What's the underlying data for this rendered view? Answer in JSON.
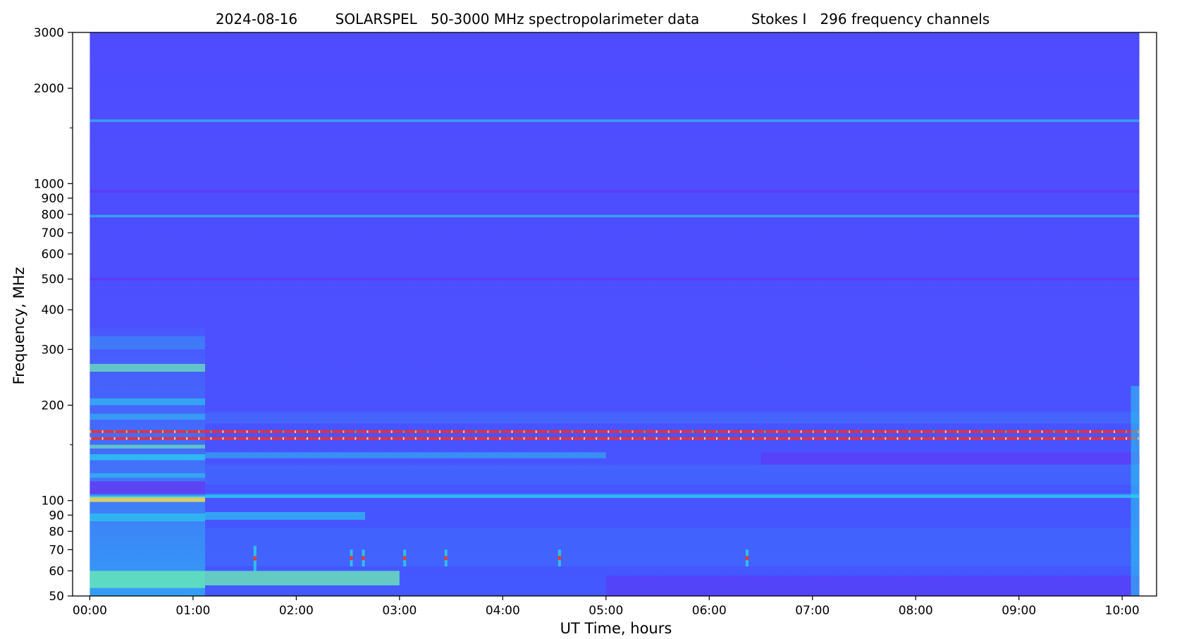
{
  "chart_data": {
    "type": "heatmap",
    "title_parts": [
      "2024-08-16",
      "SOLARSPEL   50-3000 MHz spectropolarimeter data",
      "Stokes I   296 frequency channels"
    ],
    "xlabel": "UT Time, hours",
    "ylabel": "Frequency, MHz",
    "y_scale": "log",
    "xlim": [
      "-00:10",
      "10:20"
    ],
    "data_time_range": [
      "00:00",
      "10:10"
    ],
    "ylim": [
      50,
      3000
    ],
    "x_ticks": [
      "00:00",
      "01:00",
      "02:00",
      "03:00",
      "04:00",
      "05:00",
      "06:00",
      "07:00",
      "08:00",
      "09:00",
      "10:00"
    ],
    "y_ticks": [
      50,
      60,
      70,
      80,
      90,
      100,
      200,
      300,
      400,
      500,
      600,
      700,
      800,
      900,
      1000,
      2000,
      3000
    ],
    "y_minor_ticks": [
      150,
      1500
    ],
    "colormap": "rainbow",
    "background_color": "#4f4cff",
    "colors": {
      "low": "#4f4cff",
      "violet": "#6a2df0",
      "blue": "#3d86f7",
      "cyan": "#28d6ec",
      "green": "#6ef0b0",
      "yellow": "#ffe14a",
      "red": "#ff2a1a"
    },
    "rfi_lines_mhz": [
      {
        "freq": 165,
        "level": "red"
      },
      {
        "freq": 157,
        "level": "red"
      },
      {
        "freq": 945,
        "level": "violet"
      },
      {
        "freq": 790,
        "level": "cyan"
      },
      {
        "freq": 500,
        "level": "violet"
      },
      {
        "freq": 1580,
        "level": "cyan"
      },
      {
        "freq": 103,
        "level": "cyan"
      }
    ],
    "enhanced_region": {
      "time": [
        "00:00",
        "01:07"
      ],
      "freq": [
        50,
        350
      ],
      "level": "cyan"
    },
    "bursts": [
      {
        "time": "01:36",
        "freq": [
          60,
          72
        ]
      },
      {
        "time": "02:32",
        "freq": [
          62,
          70
        ]
      },
      {
        "time": "02:39",
        "freq": [
          62,
          70
        ]
      },
      {
        "time": "03:03",
        "freq": [
          62,
          70
        ]
      },
      {
        "time": "03:27",
        "freq": [
          62,
          70
        ]
      },
      {
        "time": "04:33",
        "freq": [
          62,
          70
        ]
      },
      {
        "time": "06:22",
        "freq": [
          62,
          70
        ]
      }
    ]
  }
}
